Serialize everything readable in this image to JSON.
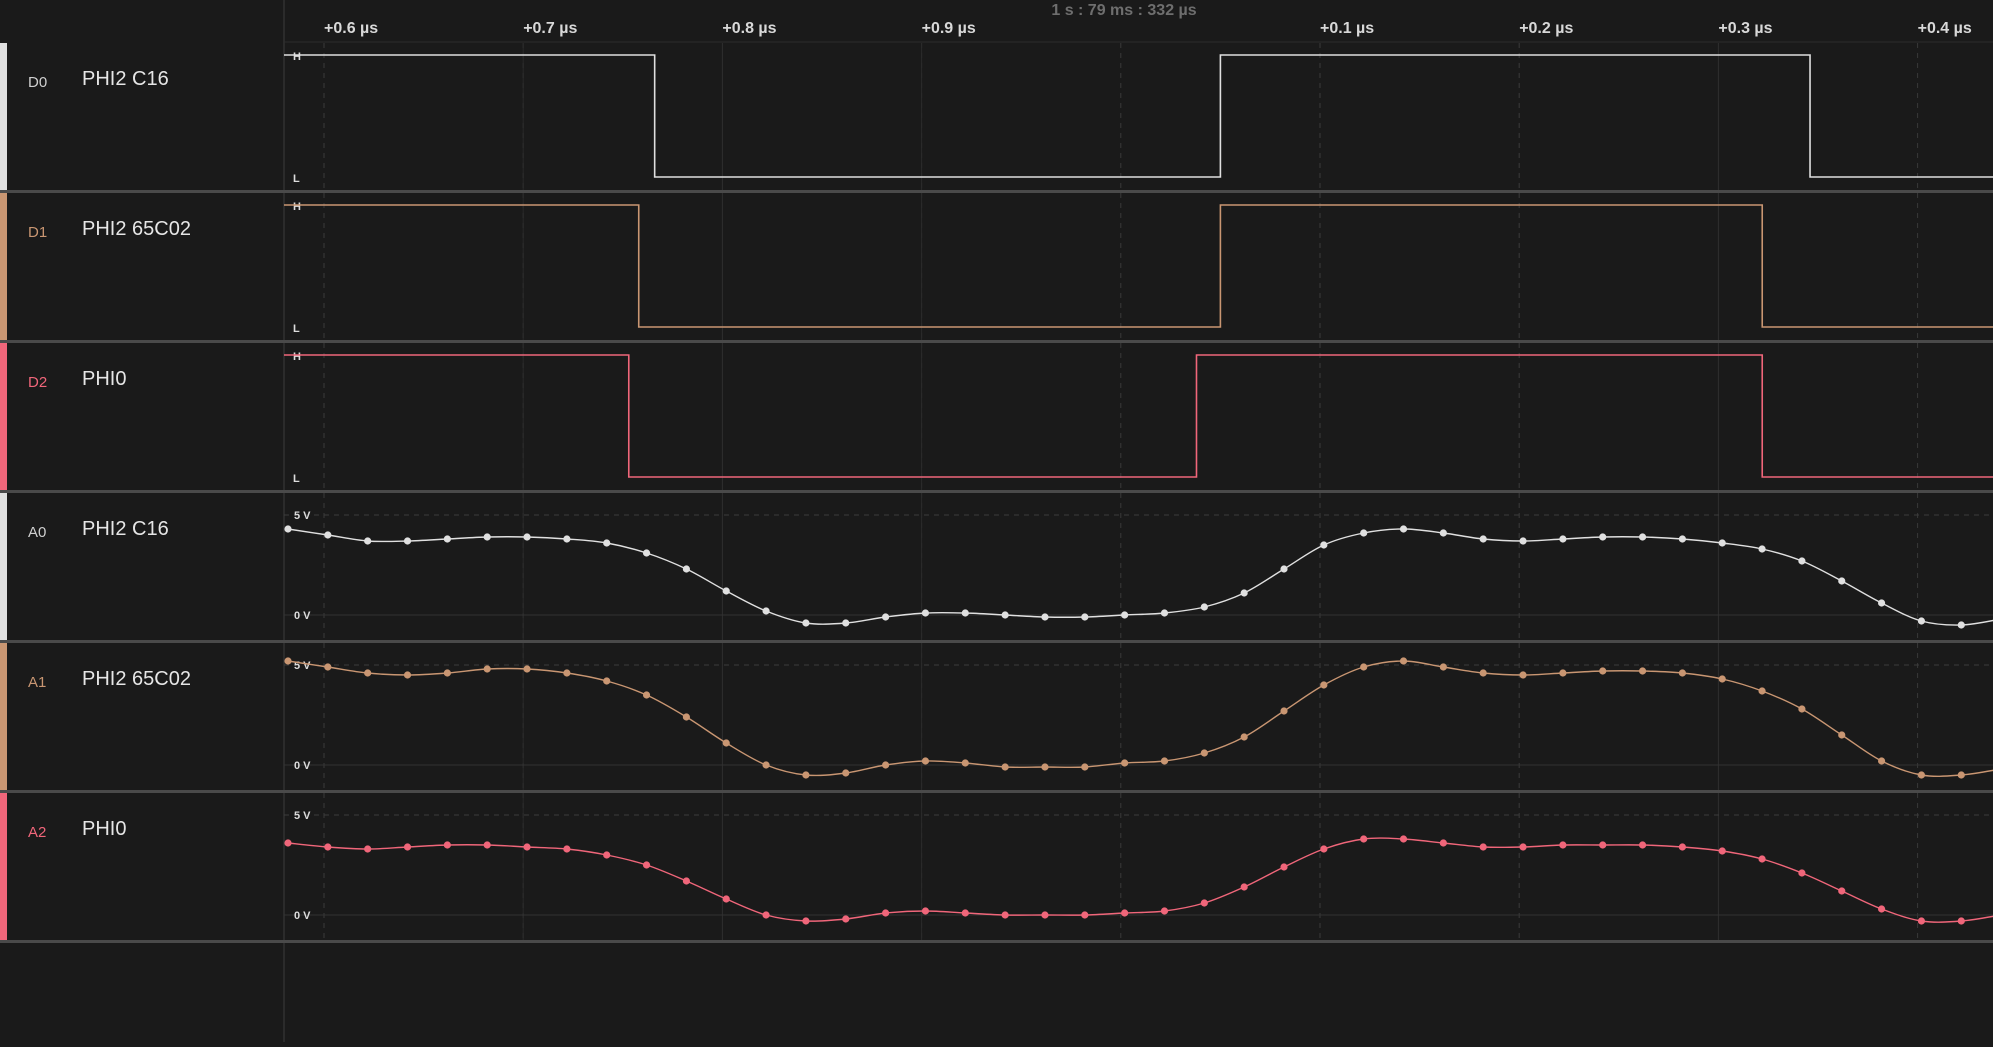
{
  "header": {
    "cursor_time": "1 s : 79 ms : 332 µs",
    "time_ticks": [
      {
        "label": "+0.6 µs",
        "t": 0.6
      },
      {
        "label": "+0.7 µs",
        "t": 0.7
      },
      {
        "label": "+0.8 µs",
        "t": 0.8
      },
      {
        "label": "+0.9 µs",
        "t": 0.9
      },
      {
        "label": "+0.1 µs",
        "t": 1.1
      },
      {
        "label": "+0.2 µs",
        "t": 1.2
      },
      {
        "label": "+0.3 µs",
        "t": 1.3
      },
      {
        "label": "+0.4 µs",
        "t": 1.4
      }
    ],
    "time_range_us": [
      0.58,
      1.4
    ]
  },
  "colors": {
    "background": "#1a1a1a",
    "divider": "#555555",
    "grid": "#3a3a3a",
    "white": "#e0e0e0",
    "tan": "#c99672",
    "red": "#f0667a"
  },
  "channels": [
    {
      "id": "D0",
      "name": "PHI2 C16",
      "kind": "digital",
      "color": "#e0e0e0",
      "high_label": "H",
      "low_label": "L",
      "initial": 1,
      "transitions_us": [
        0.766,
        1.05,
        1.346
      ]
    },
    {
      "id": "D1",
      "name": "PHI2 65C02",
      "kind": "digital",
      "color": "#c99672",
      "high_label": "H",
      "low_label": "L",
      "initial": 1,
      "transitions_us": [
        0.758,
        1.05,
        1.322
      ]
    },
    {
      "id": "D2",
      "name": "PHI0",
      "kind": "digital",
      "color": "#f0667a",
      "high_label": "H",
      "low_label": "L",
      "initial": 1,
      "transitions_us": [
        0.753,
        1.038,
        1.322
      ]
    },
    {
      "id": "A0",
      "name": "PHI2 C16",
      "kind": "analog",
      "color": "#e0e0e0",
      "top_label": "5 V",
      "bottom_label": "0 V",
      "samples": [
        4.3,
        4.0,
        3.7,
        3.7,
        3.8,
        3.9,
        3.9,
        3.8,
        3.6,
        3.1,
        2.3,
        1.2,
        0.2,
        -0.4,
        -0.4,
        -0.1,
        0.1,
        0.1,
        0.0,
        -0.1,
        -0.1,
        0.0,
        0.1,
        0.4,
        1.1,
        2.3,
        3.5,
        4.1,
        4.3,
        4.1,
        3.8,
        3.7,
        3.8,
        3.9,
        3.9,
        3.8,
        3.6,
        3.3,
        2.7,
        1.7,
        0.6,
        -0.3,
        -0.5,
        -0.2
      ]
    },
    {
      "id": "A1",
      "name": "PHI2 65C02",
      "kind": "analog",
      "color": "#c99672",
      "top_label": "5 V",
      "bottom_label": "0 V",
      "samples": [
        5.2,
        4.9,
        4.6,
        4.5,
        4.6,
        4.8,
        4.8,
        4.6,
        4.2,
        3.5,
        2.4,
        1.1,
        0.0,
        -0.5,
        -0.4,
        0.0,
        0.2,
        0.1,
        -0.1,
        -0.1,
        -0.1,
        0.1,
        0.2,
        0.6,
        1.4,
        2.7,
        4.0,
        4.9,
        5.2,
        4.9,
        4.6,
        4.5,
        4.6,
        4.7,
        4.7,
        4.6,
        4.3,
        3.7,
        2.8,
        1.5,
        0.2,
        -0.5,
        -0.5,
        -0.2
      ]
    },
    {
      "id": "A2",
      "name": "PHI0",
      "kind": "analog",
      "color": "#f0667a",
      "top_label": "5 V",
      "bottom_label": "0 V",
      "samples": [
        3.6,
        3.4,
        3.3,
        3.4,
        3.5,
        3.5,
        3.4,
        3.3,
        3.0,
        2.5,
        1.7,
        0.8,
        0.0,
        -0.3,
        -0.2,
        0.1,
        0.2,
        0.1,
        0.0,
        0.0,
        0.0,
        0.1,
        0.2,
        0.6,
        1.4,
        2.4,
        3.3,
        3.8,
        3.8,
        3.6,
        3.4,
        3.4,
        3.5,
        3.5,
        3.5,
        3.4,
        3.2,
        2.8,
        2.1,
        1.2,
        0.3,
        -0.3,
        -0.3,
        0.0
      ]
    }
  ]
}
